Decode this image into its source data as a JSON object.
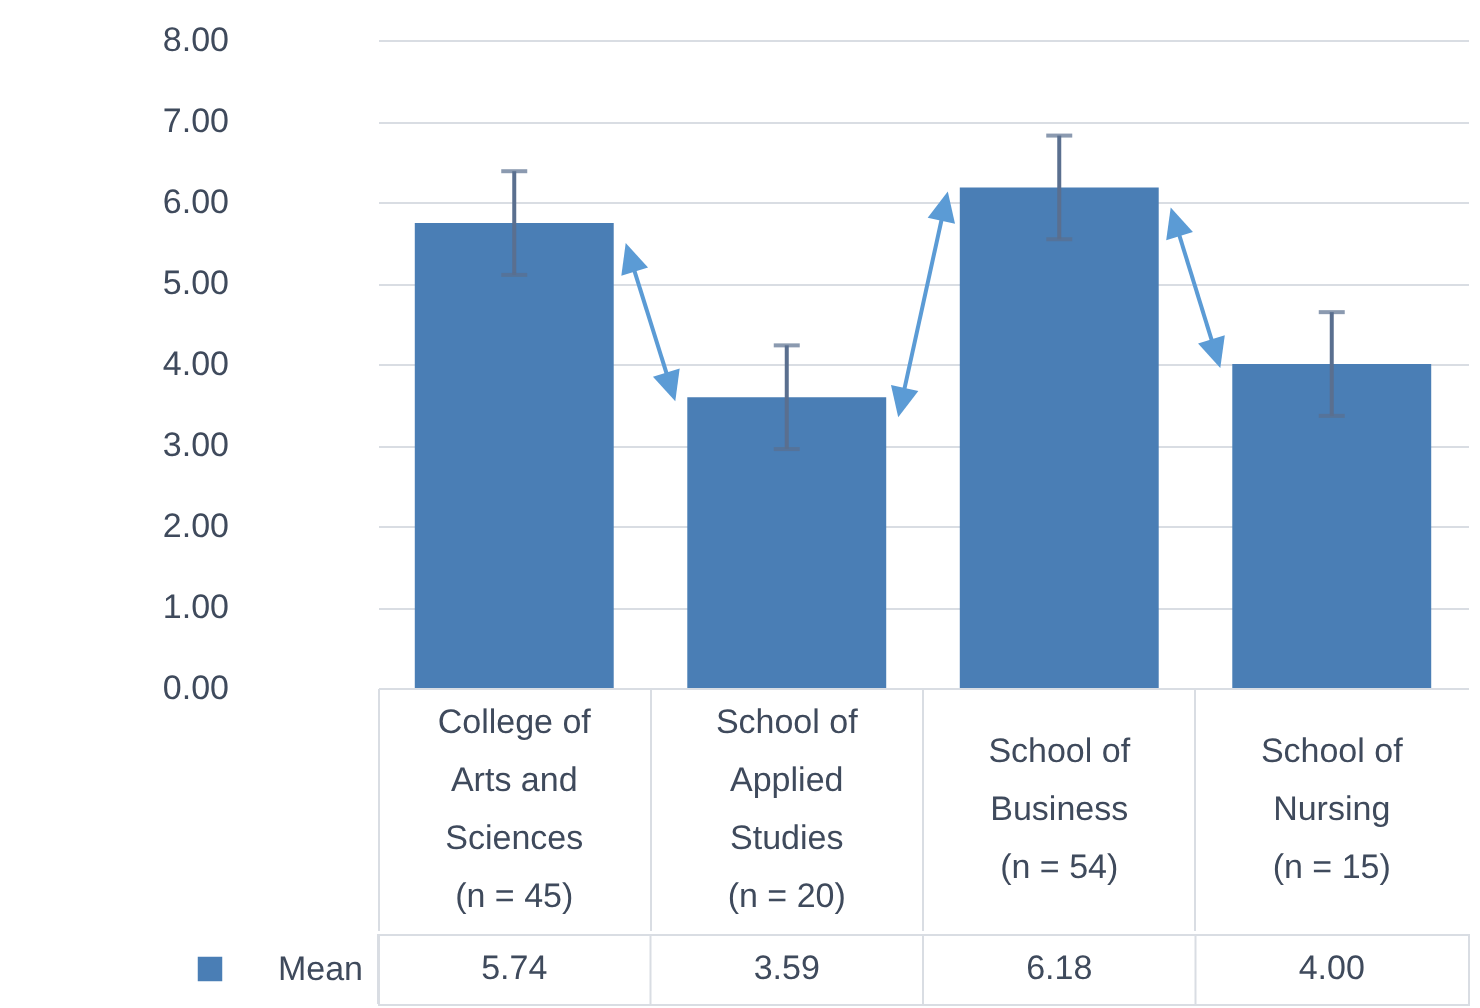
{
  "chart_data": {
    "type": "bar",
    "categories": [
      "College of Arts and Sciences (n = 45)",
      "School of Applied Studies (n = 20)",
      "School of Business (n = 54)",
      "School of Nursing (n = 15)"
    ],
    "series": [
      {
        "name": "Mean",
        "color": "#4a7eb5",
        "values": [
          5.74,
          3.59,
          6.18,
          4.0
        ],
        "errors": [
          0.64,
          0.64,
          0.64,
          0.64
        ]
      }
    ],
    "ylim": [
      0,
      8
    ],
    "yticks": [
      {
        "value": 0,
        "label": "0.00"
      },
      {
        "value": 1,
        "label": "1.00"
      },
      {
        "value": 2,
        "label": "2.00"
      },
      {
        "value": 3,
        "label": "3.00"
      },
      {
        "value": 4,
        "label": "4.00"
      },
      {
        "value": 5,
        "label": "5.00"
      },
      {
        "value": 6,
        "label": "6.00"
      },
      {
        "value": 7,
        "label": "7.00"
      },
      {
        "value": 8,
        "label": "8.00"
      }
    ],
    "grid": "y",
    "value_labels": [
      "5.74",
      "3.59",
      "6.18",
      "4.00"
    ]
  }
}
